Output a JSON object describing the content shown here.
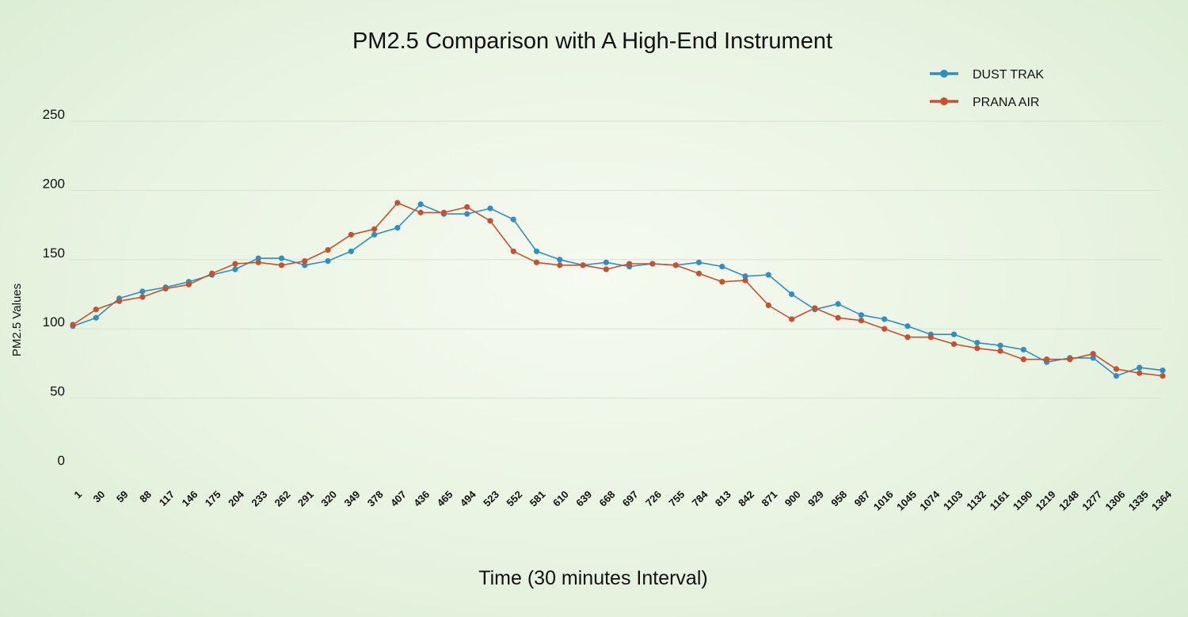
{
  "chart_data": {
    "type": "line",
    "title": "PM2.5 Comparison with A High-End Instrument",
    "xlabel": "Time (30 minutes Interval)",
    "ylabel": "PM2.5 Values",
    "ylim": [
      0,
      250
    ],
    "yticks": [
      0,
      50,
      100,
      150,
      200,
      250
    ],
    "grid": true,
    "legend_position": "top-right",
    "categories": [
      "1",
      "30",
      "59",
      "88",
      "117",
      "146",
      "175",
      "204",
      "233",
      "262",
      "291",
      "320",
      "349",
      "378",
      "407",
      "436",
      "465",
      "494",
      "523",
      "552",
      "581",
      "610",
      "639",
      "668",
      "697",
      "726",
      "755",
      "784",
      "813",
      "842",
      "871",
      "900",
      "929",
      "958",
      "987",
      "1016",
      "1045",
      "1074",
      "1103",
      "1132",
      "1161",
      "1190",
      "1219",
      "1248",
      "1277",
      "1306",
      "1335",
      "1364"
    ],
    "series": [
      {
        "name": "DUST TRAK",
        "color": "#2f8fc4",
        "values": [
          102,
          108,
          122,
          127,
          130,
          134,
          139,
          143,
          151,
          151,
          146,
          149,
          156,
          168,
          173,
          190,
          183,
          183,
          187,
          179,
          156,
          150,
          146,
          148,
          145,
          147,
          146,
          148,
          145,
          138,
          139,
          125,
          114,
          118,
          110,
          107,
          102,
          96,
          96,
          90,
          88,
          85,
          76,
          79,
          79,
          66,
          72,
          70
        ]
      },
      {
        "name": "PRANA AIR",
        "color": "#c9502d",
        "values": [
          103,
          114,
          120,
          123,
          129,
          132,
          140,
          147,
          148,
          146,
          149,
          157,
          168,
          172,
          191,
          184,
          184,
          188,
          178,
          156,
          148,
          146,
          146,
          143,
          147,
          147,
          146,
          140,
          134,
          135,
          117,
          107,
          115,
          108,
          106,
          100,
          94,
          94,
          89,
          86,
          84,
          78,
          78,
          78,
          82,
          71,
          68,
          66
        ]
      }
    ]
  }
}
